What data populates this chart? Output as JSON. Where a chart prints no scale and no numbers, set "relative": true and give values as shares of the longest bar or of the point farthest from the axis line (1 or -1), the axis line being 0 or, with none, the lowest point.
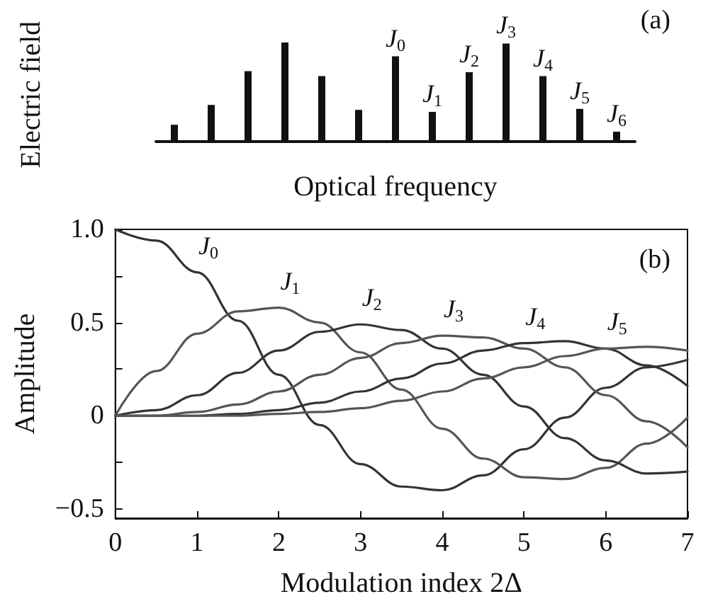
{
  "chart_data": [
    {
      "type": "bar",
      "ylabel": "Electric field",
      "xlabel": "Optical frequency",
      "annotations": [
        "(a)"
      ],
      "relative": true,
      "color": "#111111",
      "categories": [
        null,
        null,
        null,
        null,
        null,
        null,
        "J$_{0}$",
        "J$_{1}$",
        "J$_{2}$",
        "J$_{3}$",
        "J$_{4}$",
        "J$_{5}$",
        "J$_{6}$"
      ],
      "values": [
        0.17,
        0.37,
        0.71,
        1,
        0.66,
        0.32,
        0.86,
        0.3,
        0.7,
        0.99,
        0.66,
        0.33,
        0.1
      ],
      "grid": false,
      "legend": false
    },
    {
      "type": "line",
      "xlabel": "Modulation index 2Δ",
      "ylabel": "Amplitude",
      "annotations": [
        "(b)"
      ],
      "x": [
        0,
        0.5,
        1,
        1.5,
        2,
        2.5,
        3,
        3.5,
        4,
        4.5,
        5,
        5.5,
        6,
        6.5,
        7
      ],
      "xlim": [
        0,
        7
      ],
      "xticks": [
        0,
        1,
        2,
        3,
        4,
        5,
        6,
        7
      ],
      "ylim": [
        -0.55,
        1
      ],
      "yticks": [
        {
          "value": -0.5,
          "label": "−0.5"
        },
        {
          "value": -0.25,
          "label": null
        },
        0,
        {
          "value": 0.25,
          "label": null
        },
        0.5,
        {
          "value": 0.75,
          "label": null
        },
        {
          "value": 1,
          "label": "1.0"
        }
      ],
      "grid": false,
      "legend": false,
      "marker": "none",
      "line_style": "solid",
      "series": [
        {
          "name": "J$_{0}$",
          "color": "#333333",
          "values": [
            1,
            0.94,
            0.77,
            0.51,
            0.22,
            -0.05,
            -0.26,
            -0.38,
            -0.4,
            -0.32,
            -0.18,
            -0.01,
            0.15,
            0.26,
            0.3
          ]
        },
        {
          "name": "J$_{1}$",
          "color": "#555555",
          "values": [
            0,
            0.24,
            0.44,
            0.56,
            0.58,
            0.5,
            0.34,
            0.14,
            -0.07,
            -0.23,
            -0.33,
            -0.34,
            -0.28,
            -0.15,
            -0.01
          ]
        },
        {
          "name": "J$_{2}$",
          "color": "#333333",
          "values": [
            0,
            0.03,
            0.11,
            0.23,
            0.35,
            0.45,
            0.49,
            0.46,
            0.36,
            0.22,
            0.05,
            -0.12,
            -0.24,
            -0.31,
            -0.3
          ]
        },
        {
          "name": "J$_{3}$",
          "color": "#555555",
          "values": [
            0,
            0,
            0.02,
            0.06,
            0.13,
            0.22,
            0.31,
            0.39,
            0.43,
            0.42,
            0.36,
            0.26,
            0.11,
            -0.03,
            -0.17
          ]
        },
        {
          "name": "J$_{4}$",
          "color": "#333333",
          "values": [
            0,
            0,
            0,
            0.01,
            0.03,
            0.07,
            0.13,
            0.2,
            0.28,
            0.35,
            0.39,
            0.4,
            0.36,
            0.27,
            0.16
          ]
        },
        {
          "name": "J$_{5}$",
          "color": "#555555",
          "values": [
            0,
            0,
            0,
            0,
            0.01,
            0.02,
            0.04,
            0.08,
            0.13,
            0.2,
            0.26,
            0.32,
            0.36,
            0.37,
            0.35
          ]
        }
      ]
    }
  ]
}
